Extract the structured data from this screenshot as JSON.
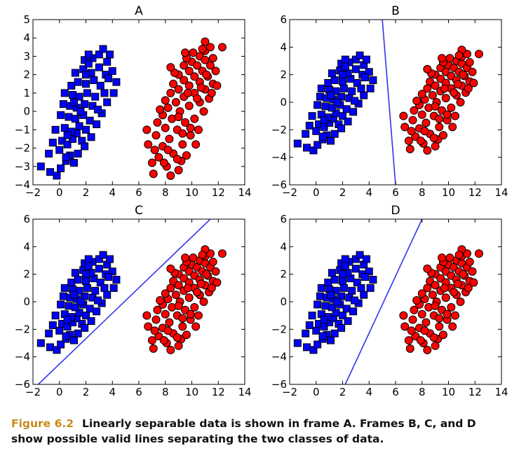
{
  "colors": {
    "class_1": "#0000ff",
    "class_2": "#ff0000",
    "line": "#3333ee",
    "caption_label": "#c88a1a"
  },
  "caption": {
    "label": "Figure 6.2",
    "text": "Linearly separable data is shown in frame A. Frames B, C, and D show possible valid lines separating the two classes of data."
  },
  "chart_data": [
    {
      "type": "scatter",
      "title": "A",
      "xlim": [
        -2,
        14
      ],
      "ylim": [
        -4,
        5
      ],
      "xticks": [
        "−2",
        "0",
        "2",
        "4",
        "6",
        "8",
        "10",
        "12",
        "14"
      ],
      "yticks": [
        "−4",
        "−3",
        "−2",
        "−1",
        "0",
        "1",
        "2",
        "3",
        "4",
        "5"
      ],
      "separator": null
    },
    {
      "type": "scatter",
      "title": "B",
      "xlim": [
        -2,
        14
      ],
      "ylim": [
        -6,
        6
      ],
      "xticks": [
        "−2",
        "0",
        "2",
        "4",
        "6",
        "8",
        "10",
        "12",
        "14"
      ],
      "yticks": [
        "−6",
        "−4",
        "−2",
        "0",
        "2",
        "4",
        "6"
      ],
      "separator": {
        "p1": [
          5.0,
          6.0
        ],
        "p2": [
          6.0,
          -6.0
        ]
      }
    },
    {
      "type": "scatter",
      "title": "C",
      "xlim": [
        -2,
        14
      ],
      "ylim": [
        -6,
        6
      ],
      "xticks": [
        "−2",
        "0",
        "2",
        "4",
        "6",
        "8",
        "10",
        "12",
        "14"
      ],
      "yticks": [
        "−6",
        "−4",
        "−2",
        "0",
        "2",
        "4",
        "6"
      ],
      "separator": {
        "p1": [
          -1.6,
          -6.0
        ],
        "p2": [
          11.4,
          6.0
        ]
      }
    },
    {
      "type": "scatter",
      "title": "D",
      "xlim": [
        -2,
        14
      ],
      "ylim": [
        -6,
        6
      ],
      "xticks": [
        "−2",
        "0",
        "2",
        "4",
        "6",
        "8",
        "10",
        "12",
        "14"
      ],
      "yticks": [
        "−6",
        "−4",
        "−2",
        "0",
        "2",
        "4",
        "6"
      ],
      "separator": {
        "p1": [
          2.2,
          -6.0
        ],
        "p2": [
          8.0,
          6.0
        ]
      }
    }
  ],
  "series": [
    {
      "shape": "square",
      "color": "#0000ff",
      "points": [
        [
          -1.4,
          -3.0
        ],
        [
          -0.7,
          -3.3
        ],
        [
          -0.2,
          -3.5
        ],
        [
          0.1,
          -3.1
        ],
        [
          0.5,
          -2.7
        ],
        [
          -0.8,
          -2.3
        ],
        [
          0.0,
          -2.1
        ],
        [
          0.8,
          -2.4
        ],
        [
          1.1,
          -2.8
        ],
        [
          1.4,
          -2.3
        ],
        [
          -0.5,
          -1.7
        ],
        [
          0.2,
          -1.6
        ],
        [
          0.6,
          -1.8
        ],
        [
          1.0,
          -1.5
        ],
        [
          1.3,
          -1.2
        ],
        [
          1.7,
          -1.6
        ],
        [
          -0.3,
          -1.0
        ],
        [
          0.4,
          -0.9
        ],
        [
          0.9,
          -1.1
        ],
        [
          1.5,
          -0.8
        ],
        [
          2.0,
          -1.0
        ],
        [
          0.1,
          -0.2
        ],
        [
          0.7,
          -0.3
        ],
        [
          1.2,
          -0.4
        ],
        [
          1.8,
          -0.2
        ],
        [
          2.3,
          -0.5
        ],
        [
          0.3,
          0.4
        ],
        [
          0.8,
          0.3
        ],
        [
          1.3,
          0.2
        ],
        [
          1.9,
          0.4
        ],
        [
          2.5,
          0.3
        ],
        [
          0.4,
          1.0
        ],
        [
          1.0,
          0.9
        ],
        [
          1.5,
          0.8
        ],
        [
          2.1,
          1.0
        ],
        [
          2.7,
          0.8
        ],
        [
          0.9,
          1.4
        ],
        [
          1.4,
          1.6
        ],
        [
          2.0,
          1.5
        ],
        [
          2.6,
          1.7
        ],
        [
          3.1,
          1.4
        ],
        [
          1.2,
          2.1
        ],
        [
          1.8,
          2.3
        ],
        [
          2.4,
          2.1
        ],
        [
          3.0,
          2.4
        ],
        [
          3.5,
          2.0
        ],
        [
          1.9,
          2.8
        ],
        [
          2.5,
          2.9
        ],
        [
          3.0,
          3.1
        ],
        [
          3.6,
          2.7
        ],
        [
          2.2,
          3.1
        ],
        [
          3.3,
          3.4
        ],
        [
          3.8,
          3.1
        ],
        [
          4.0,
          2.2
        ],
        [
          4.3,
          1.6
        ],
        [
          4.1,
          1.0
        ],
        [
          3.6,
          0.5
        ],
        [
          3.2,
          -0.1
        ],
        [
          2.8,
          -0.7
        ],
        [
          2.4,
          -1.4
        ],
        [
          1.9,
          -1.9
        ],
        [
          0.5,
          -2.5
        ],
        [
          3.4,
          1.0
        ],
        [
          2.9,
          0.1
        ],
        [
          1.6,
          0.0
        ],
        [
          2.2,
          2.6
        ],
        [
          0.6,
          -1.3
        ],
        [
          1.1,
          0.5
        ],
        [
          2.0,
          2.0
        ],
        [
          3.7,
          1.8
        ]
      ]
    },
    {
      "shape": "circle",
      "color": "#ff0000",
      "points": [
        [
          6.6,
          -1.0
        ],
        [
          6.7,
          -1.8
        ],
        [
          7.0,
          -2.8
        ],
        [
          7.1,
          -3.4
        ],
        [
          7.5,
          -2.5
        ],
        [
          7.3,
          -1.3
        ],
        [
          7.4,
          -0.6
        ],
        [
          7.8,
          -1.9
        ],
        [
          8.1,
          -3.0
        ],
        [
          8.4,
          -3.5
        ],
        [
          8.0,
          -0.9
        ],
        [
          8.3,
          -1.5
        ],
        [
          8.6,
          -2.3
        ],
        [
          9.0,
          -3.2
        ],
        [
          9.2,
          -2.7
        ],
        [
          7.8,
          -0.2
        ],
        [
          8.2,
          0.2
        ],
        [
          8.5,
          -0.4
        ],
        [
          8.9,
          -1.0
        ],
        [
          9.3,
          -1.8
        ],
        [
          9.6,
          -2.4
        ],
        [
          8.0,
          0.6
        ],
        [
          8.4,
          1.0
        ],
        [
          8.8,
          0.5
        ],
        [
          9.1,
          0.0
        ],
        [
          9.5,
          -0.6
        ],
        [
          9.9,
          -1.3
        ],
        [
          8.6,
          1.5
        ],
        [
          9.0,
          1.2
        ],
        [
          9.4,
          0.8
        ],
        [
          9.8,
          0.3
        ],
        [
          10.2,
          -0.4
        ],
        [
          10.5,
          -1.0
        ],
        [
          9.0,
          2.0
        ],
        [
          9.4,
          1.7
        ],
        [
          9.8,
          1.4
        ],
        [
          10.2,
          1.0
        ],
        [
          10.6,
          0.5
        ],
        [
          10.9,
          0.0
        ],
        [
          9.4,
          2.5
        ],
        [
          9.8,
          2.2
        ],
        [
          10.2,
          1.9
        ],
        [
          10.6,
          1.6
        ],
        [
          11.0,
          1.2
        ],
        [
          11.3,
          0.7
        ],
        [
          10.0,
          2.7
        ],
        [
          10.4,
          2.5
        ],
        [
          10.8,
          2.2
        ],
        [
          11.2,
          1.9
        ],
        [
          11.6,
          1.5
        ],
        [
          10.6,
          3.0
        ],
        [
          11.0,
          2.8
        ],
        [
          11.4,
          2.5
        ],
        [
          11.8,
          2.2
        ],
        [
          11.0,
          3.3
        ],
        [
          11.4,
          3.5
        ],
        [
          11.0,
          3.8
        ],
        [
          12.3,
          3.5
        ],
        [
          11.6,
          2.9
        ],
        [
          11.9,
          1.4
        ],
        [
          10.3,
          -1.8
        ],
        [
          7.2,
          -2.1
        ],
        [
          8.9,
          -2.6
        ],
        [
          8.7,
          2.1
        ],
        [
          9.6,
          2.9
        ],
        [
          10.1,
          3.2
        ],
        [
          11.1,
          2.0
        ],
        [
          10.4,
          0.7
        ],
        [
          9.0,
          -0.3
        ],
        [
          8.2,
          -2.1
        ],
        [
          7.6,
          0.1
        ],
        [
          9.7,
          1.0
        ],
        [
          10.8,
          3.4
        ],
        [
          11.5,
          1.0
        ],
        [
          8.4,
          2.4
        ],
        [
          9.9,
          -0.9
        ],
        [
          7.9,
          -2.8
        ],
        [
          9.3,
          -1.2
        ],
        [
          10.7,
          1.3
        ],
        [
          9.5,
          3.2
        ]
      ]
    }
  ]
}
